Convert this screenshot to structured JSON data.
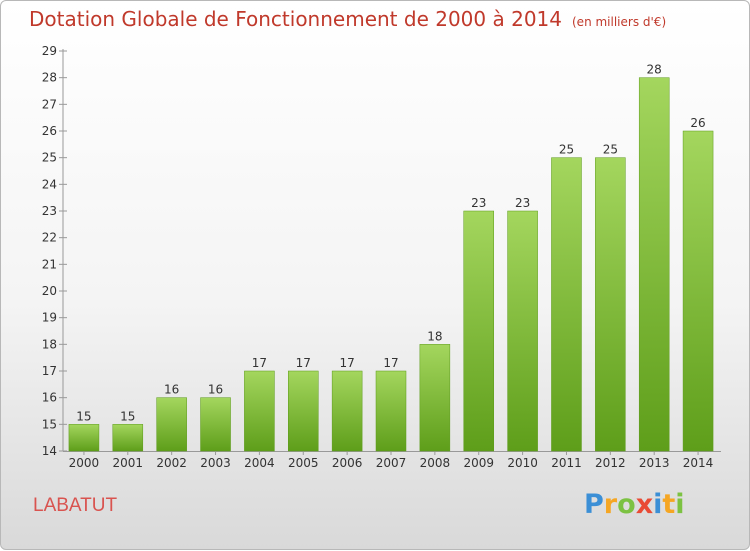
{
  "header": {
    "title": "Dotation Globale de Fonctionnement de 2000 à 2014",
    "unit": "(en milliers d'€)"
  },
  "commune": "LABATUT",
  "logo": {
    "letters": [
      "P",
      "r",
      "o",
      "x",
      "i",
      "t",
      "i"
    ],
    "colors": [
      "#3b8fd6",
      "#f5a623",
      "#7cc242",
      "#e94b35",
      "#3b8fd6",
      "#f5a623",
      "#7cc242"
    ]
  },
  "colors": {
    "bar_light": "#a4d65e",
    "bar_dark": "#5e9e1a",
    "title": "#c0392b"
  },
  "chart_data": {
    "type": "bar",
    "title": "Dotation Globale de Fonctionnement de 2000 à 2014",
    "xlabel": "",
    "ylabel": "",
    "categories": [
      "2000",
      "2001",
      "2002",
      "2003",
      "2004",
      "2005",
      "2006",
      "2007",
      "2008",
      "2009",
      "2010",
      "2011",
      "2012",
      "2013",
      "2014"
    ],
    "values": [
      15,
      15,
      16,
      16,
      17,
      17,
      17,
      17,
      18,
      23,
      23,
      25,
      25,
      28,
      26
    ],
    "ylim": [
      14,
      29
    ],
    "yticks": [
      14,
      15,
      16,
      17,
      18,
      19,
      20,
      21,
      22,
      23,
      24,
      25,
      26,
      27,
      28,
      29
    ],
    "grid": false,
    "legend": "none"
  }
}
